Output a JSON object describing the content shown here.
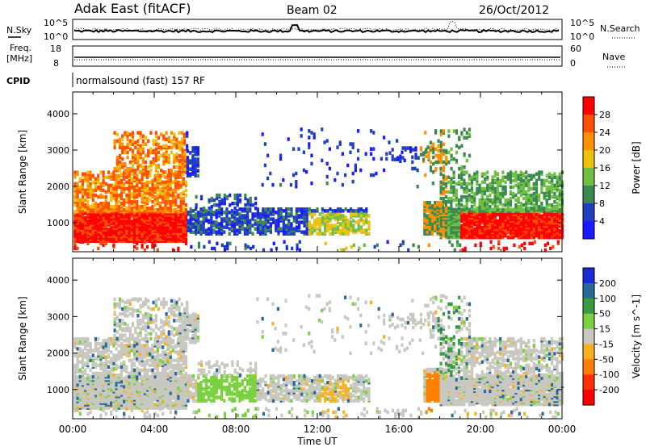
{
  "header": {
    "station": "Adak East (fitACF)",
    "beam": "Beam 02",
    "date": "26/Oct/2012"
  },
  "noise_panel": {
    "left_label": "N.Sky",
    "left_ticks": [
      "10^5",
      "10^0"
    ],
    "right_label": "N.Search",
    "right_ticks": [
      "10^5",
      "10^0"
    ]
  },
  "freq_panel": {
    "left_label_1": "Freq.",
    "left_label_2": "[MHz]",
    "left_ticks": [
      "18",
      "8"
    ],
    "right_label": "Nave",
    "right_ticks": [
      "60",
      "0"
    ]
  },
  "cpid": {
    "label": "CPID",
    "text": "normalsound (fast) 157 RF"
  },
  "chart_data": [
    {
      "type": "heatmap",
      "title": "",
      "quantity": "Power",
      "xlabel": "Time UT",
      "ylabel": "Slant Range [km]",
      "x_ticks": [
        "00:00",
        "04:00",
        "08:00",
        "12:00",
        "16:00",
        "20:00",
        "00:00"
      ],
      "y_ticks": [
        "1000",
        "2000",
        "3000",
        "4000"
      ],
      "ylim": [
        200,
        4600
      ],
      "colorbar": {
        "label": "Power [dB]",
        "ticks": [
          "4",
          "8",
          "12",
          "16",
          "20",
          "24",
          "28"
        ],
        "colors": [
          "#1a1aff",
          "#2040c0",
          "#3a8a50",
          "#6fc040",
          "#f0c010",
          "#ff9000",
          "#ff5000",
          "#ff0000"
        ]
      }
    },
    {
      "type": "heatmap",
      "title": "",
      "quantity": "Velocity",
      "xlabel": "Time UT",
      "ylabel": "Slant Range [km]",
      "x_ticks": [
        "00:00",
        "04:00",
        "08:00",
        "12:00",
        "16:00",
        "20:00",
        "00:00"
      ],
      "y_ticks": [
        "1000",
        "2000",
        "3000",
        "4000"
      ],
      "ylim": [
        200,
        4600
      ],
      "colorbar": {
        "label": "Velocity [m s^-1]",
        "ticks": [
          "200",
          "100",
          "50",
          "15",
          "-15",
          "-50",
          "-100",
          "-200"
        ],
        "colors": [
          "#1a2ad8",
          "#2a6a9a",
          "#3a9a40",
          "#7ad040",
          "#c8c8c0",
          "#f8b020",
          "#ff8000",
          "#ff3000",
          "#ff0000"
        ]
      }
    }
  ]
}
